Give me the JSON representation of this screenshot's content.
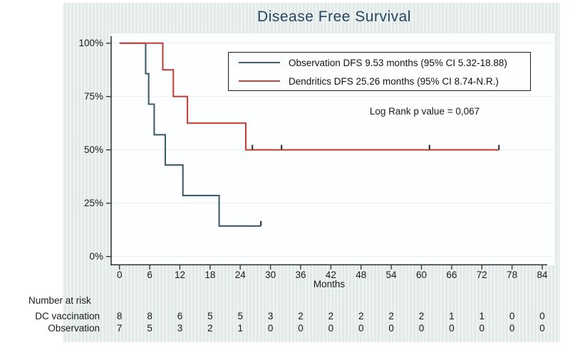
{
  "title": "Disease Free Survival",
  "colors": {
    "canvas": "#e2ebe9",
    "plot_bg": "#fdfeff",
    "title": "#27455f",
    "axis": "#3a3a3a",
    "grid": "#edf1f1",
    "text": "#1a1a1a",
    "observation": "#3f5d6d",
    "dendritics": "#c2443d",
    "censor": "#3a3a3a"
  },
  "chart_data": {
    "type": "line",
    "subtype": "kaplan-meier-step-survival",
    "title": "Disease Free Survival",
    "xlabel": "Months",
    "ylabel": "",
    "xlim": [
      0,
      84
    ],
    "ylim": [
      0,
      100
    ],
    "x_ticks": [
      0,
      6,
      12,
      18,
      24,
      30,
      36,
      42,
      48,
      54,
      60,
      66,
      72,
      78,
      84
    ],
    "y_ticks_pct": [
      0,
      25,
      50,
      75,
      100
    ],
    "y_tick_labels": [
      "0%",
      "25%",
      "50%",
      "75%",
      "100%"
    ],
    "grid": true,
    "legend_position": "top-right-inside",
    "annotation": "Log Rank p value = 0,067",
    "series": [
      {
        "name": "Observation",
        "legend_label": "Observation DFS 9.53 months (95% CI 5.32-18.88)",
        "color_key": "observation",
        "steps": [
          {
            "t": 0,
            "s": 100
          },
          {
            "t": 5.2,
            "s": 85.7
          },
          {
            "t": 5.8,
            "s": 71.4
          },
          {
            "t": 6.9,
            "s": 57.1
          },
          {
            "t": 9.1,
            "s": 42.9
          },
          {
            "t": 12.6,
            "s": 28.6
          },
          {
            "t": 19.8,
            "s": 14.3
          }
        ],
        "end_time": 28.1,
        "censor_times": [
          28.1
        ]
      },
      {
        "name": "Dendritics",
        "legend_label": "Dendritics DFS 25.26 months (95% CI 8.74-N.R.)",
        "color_key": "dendritics",
        "steps": [
          {
            "t": 0,
            "s": 100
          },
          {
            "t": 8.6,
            "s": 87.5
          },
          {
            "t": 10.7,
            "s": 75
          },
          {
            "t": 13.5,
            "s": 62.5
          },
          {
            "t": 25.1,
            "s": 50
          }
        ],
        "end_time": 75.4,
        "censor_times": [
          26.4,
          32.2,
          61.6,
          75.4
        ]
      }
    ]
  },
  "risk_table": {
    "header": "Number at risk",
    "rows": [
      {
        "label": "DC vaccination",
        "values": [
          8,
          8,
          6,
          5,
          5,
          3,
          2,
          2,
          2,
          2,
          2,
          1,
          1,
          0,
          0
        ]
      },
      {
        "label": "Observation",
        "values": [
          7,
          5,
          3,
          2,
          1,
          0,
          0,
          0,
          0,
          0,
          0,
          0,
          0,
          0,
          0
        ]
      }
    ]
  }
}
